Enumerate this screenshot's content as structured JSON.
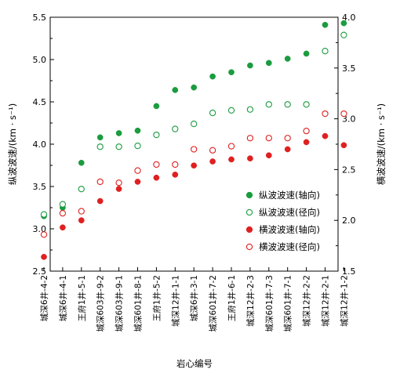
{
  "chart_data": {
    "type": "scatter",
    "xlabel": "岩心编号",
    "ylabel_left": "纵波波速/(km · s⁻¹)",
    "ylabel_right": "横波波速/(km · s⁻¹)",
    "ylim_left": [
      2.5,
      5.5
    ],
    "ylim_right": [
      1.5,
      4.0
    ],
    "yticks_left": [
      "2.5",
      "3.0",
      "3.5",
      "4.0",
      "4.5",
      "5.0",
      "5.5"
    ],
    "yticks_right": [
      "1.5",
      "2.0",
      "2.5",
      "3.0",
      "3.5",
      "4.0"
    ],
    "legend_position": "center-right",
    "grid": false,
    "categories": [
      "城深6井-4-2",
      "城深6井-4-1",
      "王府1井-5-1",
      "城深603井-9-2",
      "城深603井-9-1",
      "城深601井-8-1",
      "王府1井-5-2",
      "城深12井-1-1",
      "城深6井-3-1",
      "城深601井-7-2",
      "王府1井-6-1",
      "城深12井-2-3",
      "城深601井-7-3",
      "城深601井-7-1",
      "城深12井-2-2",
      "城深12井-2-1",
      "城深12井-1-2"
    ],
    "series": [
      {
        "name": "纵波波速(轴向)",
        "axis": "left",
        "marker": "filled",
        "color": "#1a9c3f",
        "values": [
          3.15,
          3.25,
          3.78,
          4.08,
          4.13,
          4.16,
          4.45,
          4.64,
          4.67,
          4.8,
          4.85,
          4.93,
          4.96,
          5.01,
          5.07,
          5.41,
          5.43
        ]
      },
      {
        "name": "纵波波速(径向)",
        "axis": "left",
        "marker": "open",
        "color": "#1a9c3f",
        "values": [
          3.17,
          3.29,
          3.47,
          3.97,
          3.97,
          3.98,
          4.11,
          4.18,
          4.24,
          4.37,
          4.4,
          4.41,
          4.47,
          4.47,
          4.47,
          5.1,
          5.29
        ]
      },
      {
        "name": "横波波速(轴向)",
        "axis": "right",
        "marker": "filled",
        "color": "#e02020",
        "values": [
          1.64,
          1.93,
          2.0,
          2.19,
          2.31,
          2.38,
          2.42,
          2.45,
          2.54,
          2.58,
          2.6,
          2.61,
          2.64,
          2.7,
          2.77,
          2.83,
          2.74
        ]
      },
      {
        "name": "横波波速(径向)",
        "axis": "right",
        "marker": "open",
        "color": "#e02020",
        "values": [
          1.86,
          2.07,
          2.09,
          2.38,
          2.37,
          2.49,
          2.55,
          2.55,
          2.7,
          2.69,
          2.73,
          2.81,
          2.81,
          2.81,
          2.88,
          3.05,
          3.05
        ]
      }
    ]
  }
}
